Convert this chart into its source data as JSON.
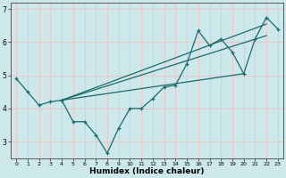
{
  "title": "",
  "xlabel": "Humidex (Indice chaleur)",
  "ylabel": "",
  "bg_color": "#cce8eb",
  "grid_color": "#e8c8c8",
  "line_color": "#1a6b6b",
  "xlim": [
    -0.5,
    23.5
  ],
  "ylim": [
    2.5,
    7.2
  ],
  "yticks": [
    3,
    4,
    5,
    6,
    7
  ],
  "xticks": [
    0,
    1,
    2,
    3,
    4,
    5,
    6,
    7,
    8,
    9,
    10,
    11,
    12,
    13,
    14,
    15,
    16,
    17,
    18,
    19,
    20,
    21,
    22,
    23
  ],
  "lines": [
    {
      "x": [
        0,
        1,
        2,
        3,
        4,
        5,
        6,
        7,
        8,
        9,
        10,
        11,
        12,
        13,
        14,
        15,
        16,
        17,
        18,
        19,
        20,
        21,
        22,
        23
      ],
      "y": [
        4.9,
        4.5,
        4.1,
        4.2,
        4.25,
        3.6,
        3.6,
        3.2,
        2.65,
        3.4,
        4.0,
        4.0,
        4.3,
        4.65,
        4.7,
        5.35,
        6.35,
        5.9,
        6.1,
        5.7,
        5.05,
        6.1,
        6.75,
        6.4
      ],
      "marker": true
    },
    {
      "x": [
        4,
        22
      ],
      "y": [
        4.25,
        6.2
      ],
      "marker": false
    },
    {
      "x": [
        4,
        22
      ],
      "y": [
        4.25,
        6.55
      ],
      "marker": false
    },
    {
      "x": [
        4,
        20
      ],
      "y": [
        4.25,
        5.05
      ],
      "marker": false
    }
  ]
}
